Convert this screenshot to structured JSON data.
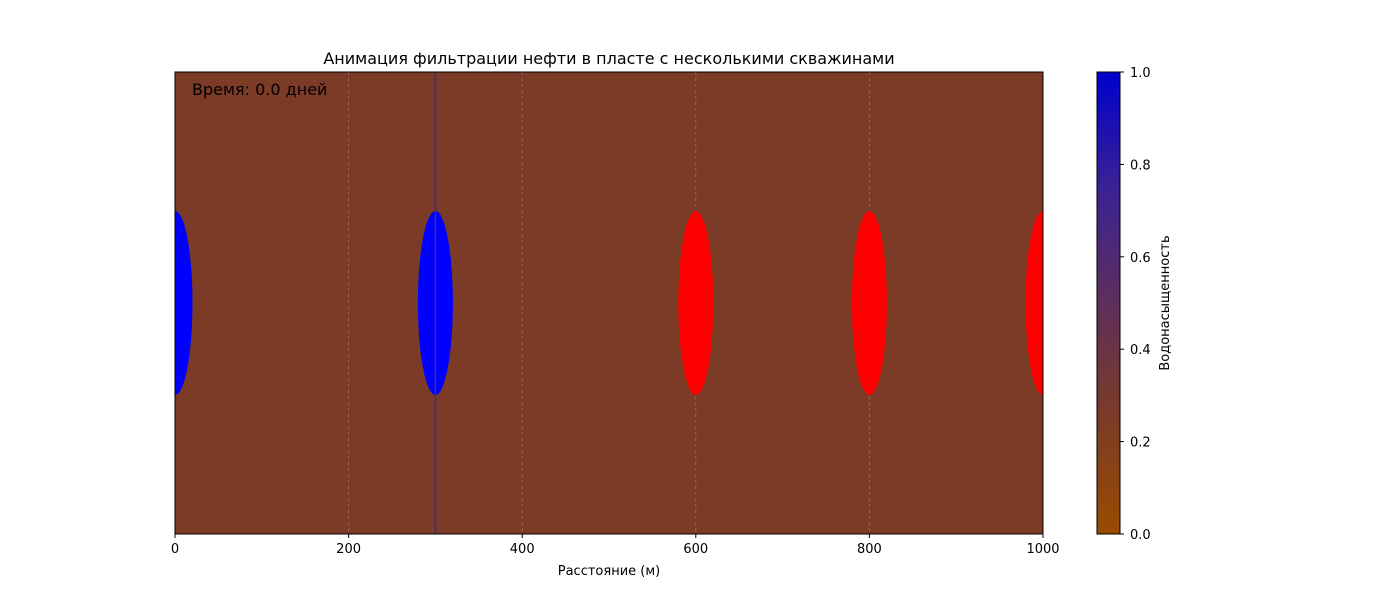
{
  "chart_data": {
    "type": "heatmap",
    "title": "Анимация фильтрации нефти в пласте с несколькими скважинами",
    "xlabel": "Расстояние (м)",
    "ylabel": "",
    "xlim": [
      0,
      1000
    ],
    "x_ticks": [
      0,
      200,
      400,
      600,
      800,
      1000
    ],
    "grid": true,
    "annotation": "Время: 0.0 дней",
    "field": {
      "saturation_value": 0.2,
      "front_position": 300,
      "front_color": "#3b2a8f"
    },
    "wells": [
      {
        "x": 0,
        "type": "injection",
        "color": "#0000ff"
      },
      {
        "x": 300,
        "type": "injection",
        "color": "#0000ff"
      },
      {
        "x": 600,
        "type": "production",
        "color": "#ff0000"
      },
      {
        "x": 800,
        "type": "production",
        "color": "#ff0000"
      },
      {
        "x": 1000,
        "type": "production",
        "color": "#ff0000"
      }
    ],
    "colorbar": {
      "label": "Водонасыщенность",
      "range": [
        0,
        1
      ],
      "ticks": [
        "0.0",
        "0.2",
        "0.4",
        "0.6",
        "0.8",
        "1.0"
      ],
      "colors": {
        "low": "#994c00",
        "mid": "#7b3b26",
        "high": "#0000cc"
      }
    }
  }
}
